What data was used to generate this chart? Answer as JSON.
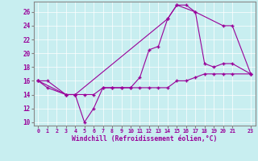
{
  "xlabel": "Windchill (Refroidissement éolien,°C)",
  "bg_color": "#c8eef0",
  "line_color": "#990099",
  "xlim": [
    -0.5,
    23.5
  ],
  "ylim": [
    9.5,
    27.5
  ],
  "xticks": [
    0,
    1,
    2,
    3,
    4,
    5,
    6,
    7,
    8,
    9,
    10,
    11,
    12,
    13,
    14,
    15,
    16,
    17,
    18,
    19,
    20,
    21,
    23
  ],
  "yticks": [
    10,
    12,
    14,
    16,
    18,
    20,
    22,
    24,
    26
  ],
  "series1_x": [
    0,
    1,
    3,
    4,
    5,
    6,
    7,
    8,
    9,
    10,
    11,
    12,
    13,
    14,
    15,
    16,
    17,
    18,
    19,
    20,
    21,
    23
  ],
  "series1_y": [
    16,
    16,
    14,
    14,
    10,
    12,
    15,
    15,
    15,
    15,
    16.5,
    20.5,
    21,
    25,
    27,
    27,
    26,
    18.5,
    18,
    18.5,
    18.5,
    17
  ],
  "series2_x": [
    0,
    3,
    4,
    14,
    15,
    17,
    20,
    21,
    23
  ],
  "series2_y": [
    16,
    14,
    14,
    25,
    27,
    26,
    24,
    24,
    17
  ],
  "series3_x": [
    0,
    1,
    3,
    4,
    5,
    6,
    7,
    8,
    9,
    10,
    11,
    12,
    13,
    14,
    15,
    16,
    17,
    18,
    19,
    20,
    21,
    23
  ],
  "series3_y": [
    16,
    15,
    14,
    14,
    14,
    14,
    15,
    15,
    15,
    15,
    15,
    15,
    15,
    15,
    16,
    16,
    16.5,
    17,
    17,
    17,
    17,
    17
  ]
}
